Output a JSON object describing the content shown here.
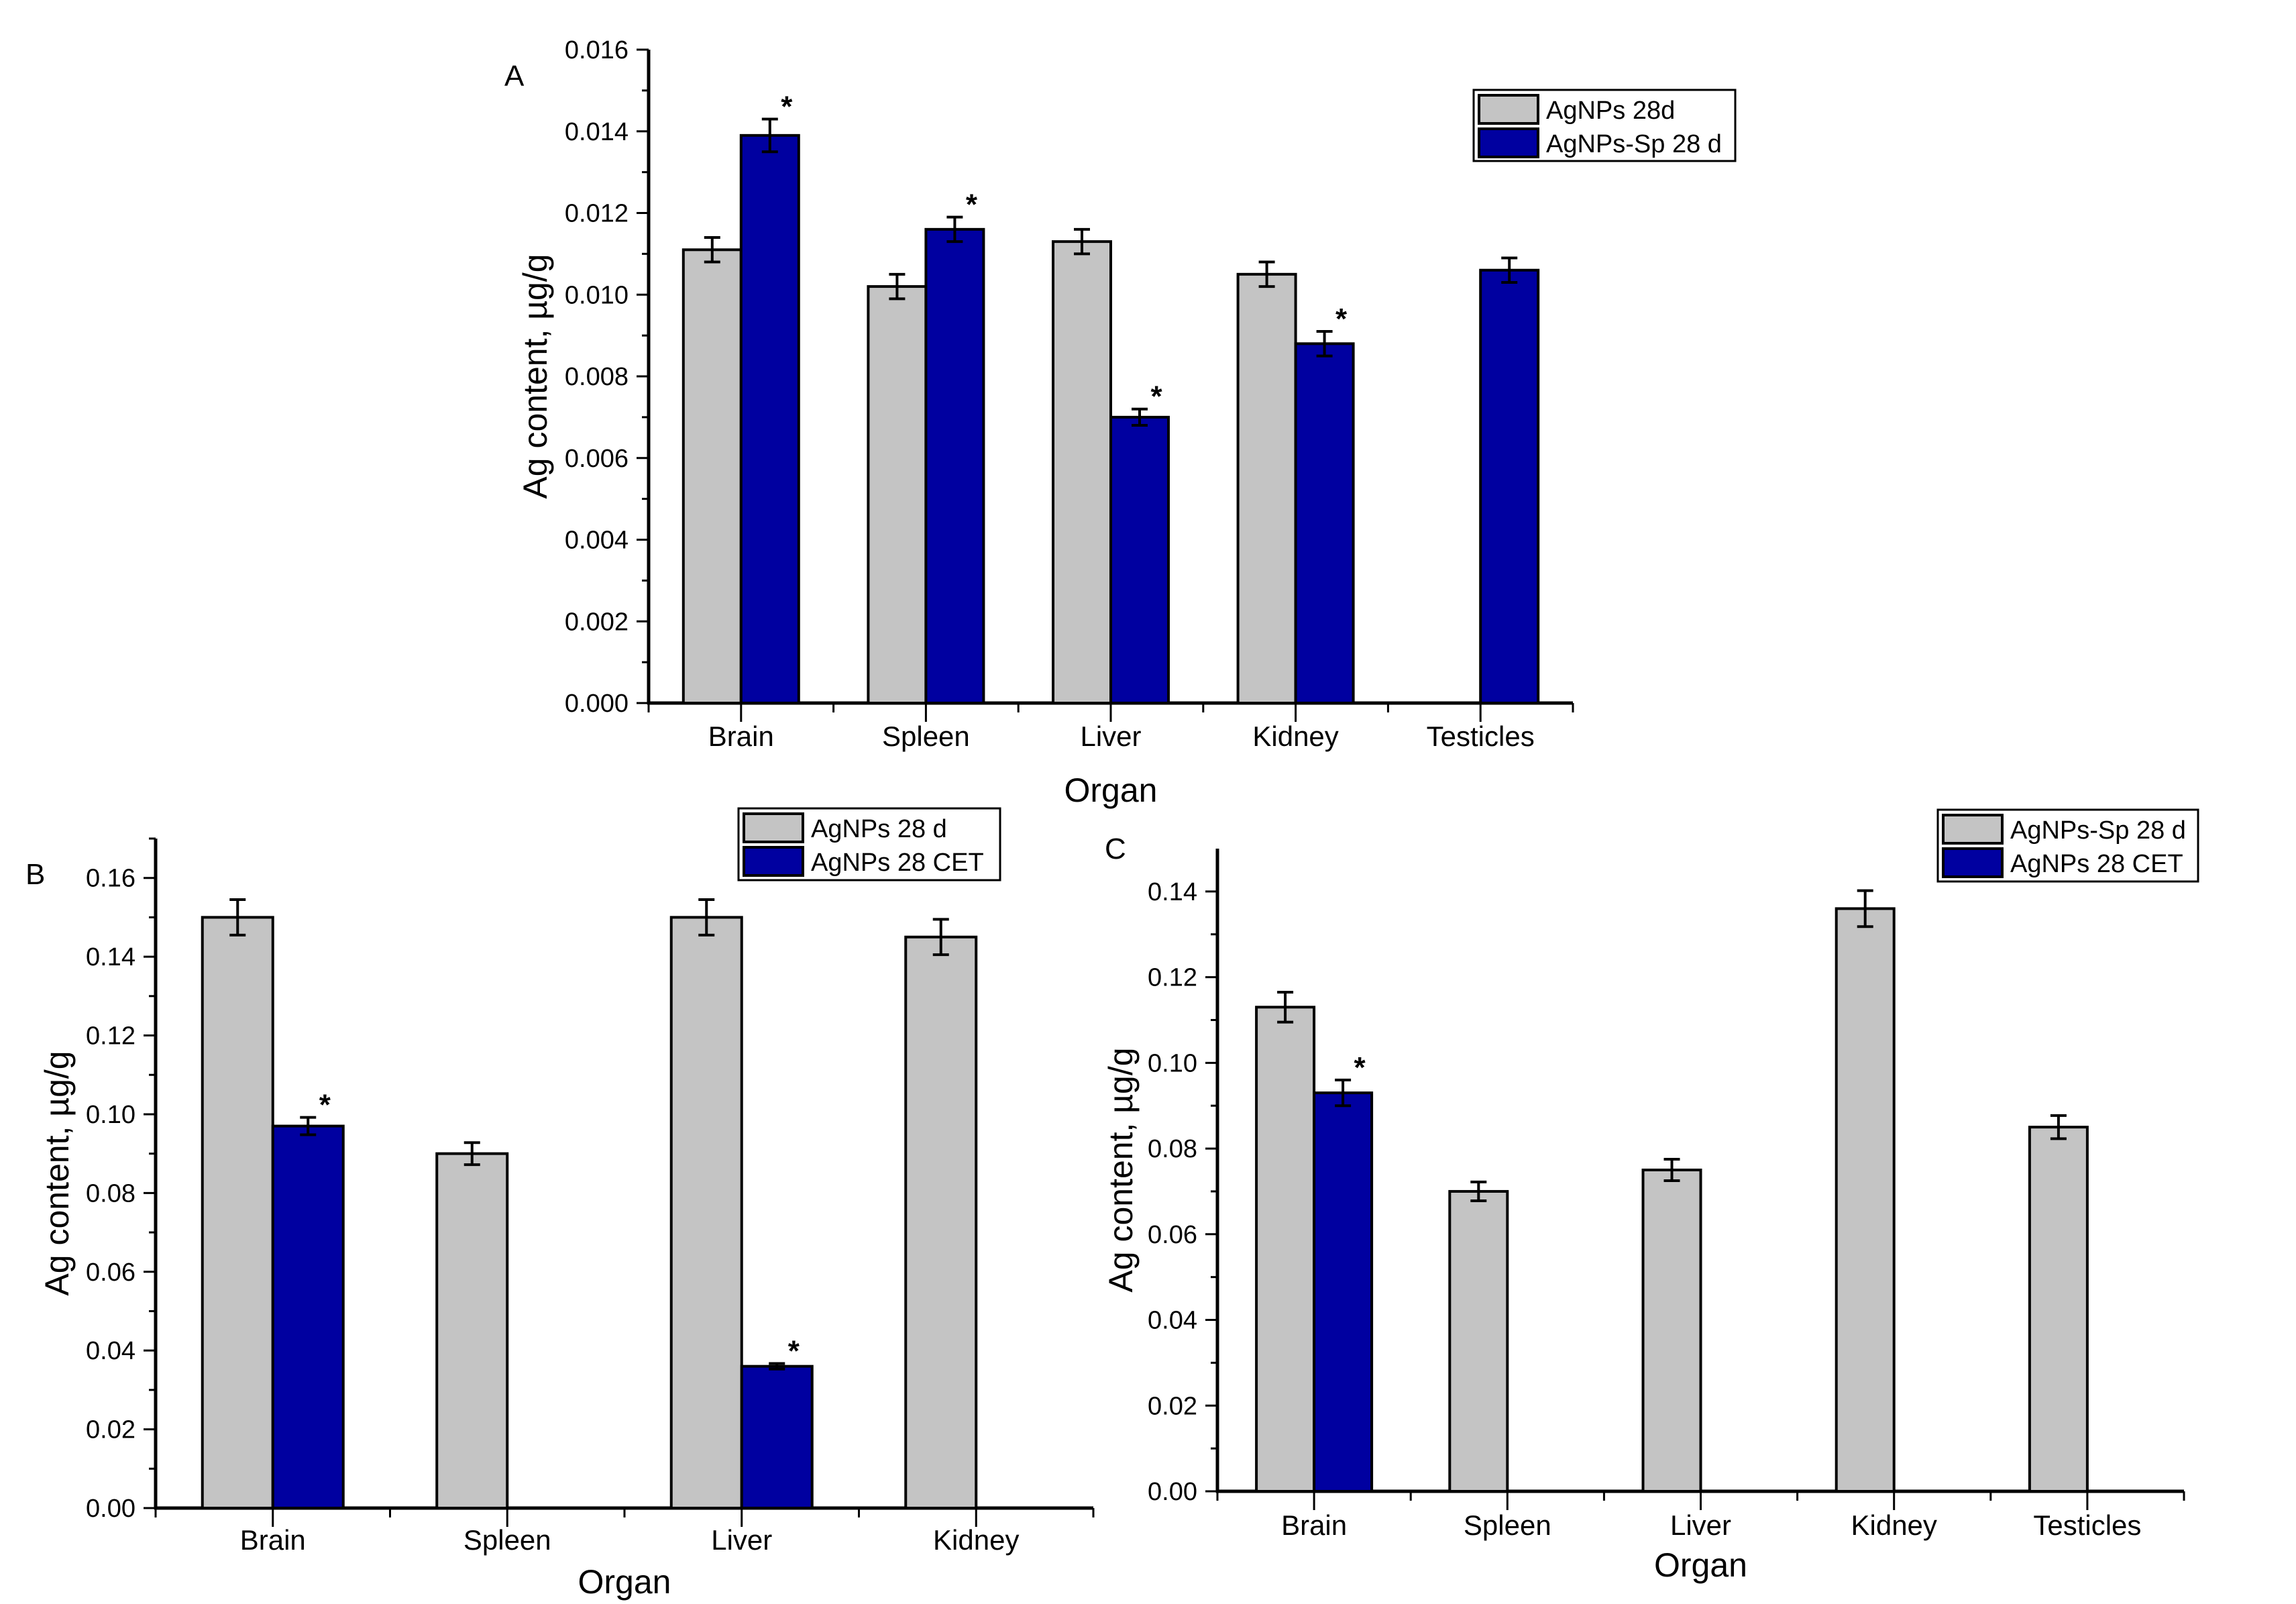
{
  "figure": {
    "series_colors": {
      "gray": "#c4c4c4",
      "blue": "#0000a0"
    }
  },
  "chart_data": [
    {
      "panel": "A",
      "type": "bar",
      "xlabel": "Organ",
      "ylabel": "Ag content, µg/g",
      "ylim": [
        0,
        0.016
      ],
      "yticks": [
        "0.000",
        "0.002",
        "0.004",
        "0.006",
        "0.008",
        "0.010",
        "0.012",
        "0.014",
        "0.016"
      ],
      "ytick_values": [
        0,
        0.002,
        0.004,
        0.006,
        0.008,
        0.01,
        0.012,
        0.014,
        0.016
      ],
      "categories": [
        "Brain",
        "Spleen",
        "Liver",
        "Kidney",
        "Testicles"
      ],
      "legend_position": "top-right",
      "series": [
        {
          "name": "AgNPs 28d",
          "color": "#c4c4c4",
          "values": [
            0.0111,
            0.0102,
            0.0113,
            0.0105,
            null
          ],
          "errors": [
            0.0003,
            0.0003,
            0.0003,
            0.0003,
            null
          ],
          "significant": [
            false,
            false,
            false,
            false,
            false
          ]
        },
        {
          "name": "AgNPs-Sp 28 d",
          "color": "#0000a0",
          "values": [
            0.0139,
            0.0116,
            0.007,
            0.0088,
            0.0106
          ],
          "errors": [
            0.0004,
            0.0003,
            0.0002,
            0.0003,
            0.0003
          ],
          "significant": [
            true,
            true,
            true,
            true,
            false
          ]
        }
      ]
    },
    {
      "panel": "B",
      "type": "bar",
      "xlabel": "Organ",
      "ylabel": "Ag content, µg/g",
      "ylim": [
        0,
        0.17
      ],
      "yticks": [
        "0.00",
        "0.02",
        "0.04",
        "0.06",
        "0.08",
        "0.10",
        "0.12",
        "0.14",
        "0.16"
      ],
      "ytick_values": [
        0,
        0.02,
        0.04,
        0.06,
        0.08,
        0.1,
        0.12,
        0.14,
        0.16
      ],
      "categories": [
        "Brain",
        "Spleen",
        "Liver",
        "Kidney"
      ],
      "legend_position": "top-right",
      "series": [
        {
          "name": "AgNPs 28 d",
          "color": "#c4c4c4",
          "values": [
            0.15,
            0.09,
            0.15,
            0.145
          ],
          "errors": [
            0.0045,
            0.0028,
            0.0045,
            0.0045
          ],
          "significant": [
            false,
            false,
            false,
            false
          ]
        },
        {
          "name": "AgNPs 28 CET",
          "color": "#0000a0",
          "values": [
            0.097,
            null,
            0.036,
            null
          ],
          "errors": [
            0.0022,
            null,
            0.0007,
            null
          ],
          "significant": [
            true,
            false,
            true,
            false
          ]
        }
      ]
    },
    {
      "panel": "C",
      "type": "bar",
      "xlabel": "Organ",
      "ylabel": "Ag content, µg/g",
      "ylim": [
        0,
        0.15
      ],
      "yticks": [
        "0.00",
        "0.02",
        "0.04",
        "0.06",
        "0.08",
        "0.10",
        "0.12",
        "0.14"
      ],
      "ytick_values": [
        0,
        0.02,
        0.04,
        0.06,
        0.08,
        0.1,
        0.12,
        0.14
      ],
      "categories": [
        "Brain",
        "Spleen",
        "Liver",
        "Kidney",
        "Testicles"
      ],
      "legend_position": "top-right",
      "series": [
        {
          "name": "AgNPs-Sp 28 d",
          "color": "#c4c4c4",
          "values": [
            0.113,
            0.07,
            0.075,
            0.136,
            0.085
          ],
          "errors": [
            0.0035,
            0.0022,
            0.0025,
            0.0042,
            0.0027
          ],
          "significant": [
            false,
            false,
            false,
            false,
            false
          ]
        },
        {
          "name": "AgNPs 28 CET",
          "color": "#0000a0",
          "values": [
            0.093,
            null,
            null,
            null,
            null
          ],
          "errors": [
            0.003,
            null,
            null,
            null,
            null
          ],
          "significant": [
            true,
            false,
            false,
            false,
            false
          ]
        }
      ]
    }
  ]
}
